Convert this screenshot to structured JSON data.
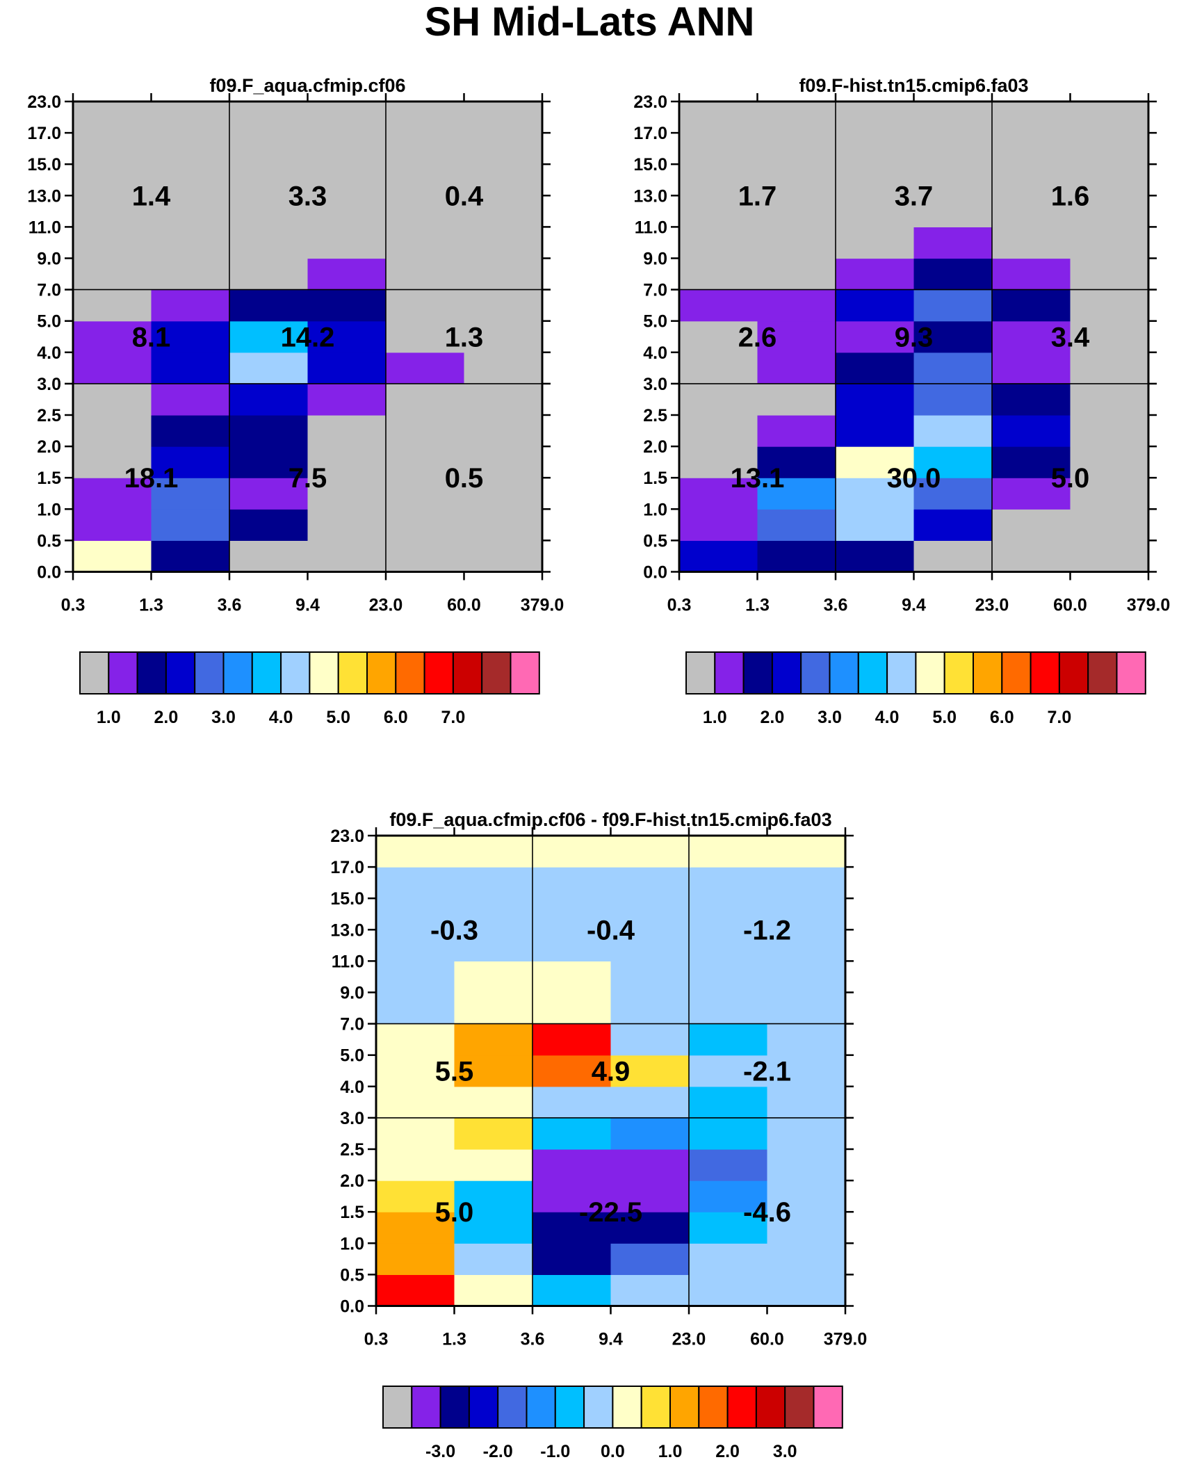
{
  "title": "SH Mid-Lats ANN",
  "palettes": {
    "abs": [
      "#c0c0c0",
      "#8522e8",
      "#00008c",
      "#0000cd",
      "#4169e1",
      "#1e90ff",
      "#00bfff",
      "#a0d0ff",
      "#ffffc8",
      "#ffe135",
      "#ffa500",
      "#ff6a00",
      "#ff0000",
      "#cc0000",
      "#a52a2a",
      "#ff69b4"
    ],
    "diff": [
      "#c0c0c0",
      "#8522e8",
      "#00008c",
      "#0000cd",
      "#4169e1",
      "#1e90ff",
      "#00bfff",
      "#a0d0ff",
      "#ffffc8",
      "#ffe135",
      "#ffa500",
      "#ff6a00",
      "#ff0000",
      "#cc0000",
      "#a52a2a",
      "#ff69b4"
    ]
  },
  "chart_data": [
    {
      "type": "heatmap",
      "title": "f09.F_aqua.cfmip.cf06",
      "xlabel": "",
      "ylabel": "",
      "x_ticks": [
        "0.3",
        "1.3",
        "3.6",
        "9.4",
        "23.0",
        "60.0",
        "379.0"
      ],
      "y_ticks": [
        "0.0",
        "0.5",
        "1.0",
        "1.5",
        "2.0",
        "2.5",
        "3.0",
        "4.0",
        "5.0",
        "7.0",
        "9.0",
        "11.0",
        "13.0",
        "15.0",
        "17.0",
        "23.0"
      ],
      "cells_color_index_bottom_to_top": [
        [
          8,
          1,
          1,
          0,
          0,
          0,
          1,
          1,
          0,
          0,
          0,
          0,
          0,
          0,
          0
        ],
        [
          2,
          4,
          4,
          3,
          2,
          1,
          3,
          3,
          1,
          0,
          0,
          0,
          0,
          0,
          0
        ],
        [
          0,
          2,
          1,
          2,
          2,
          3,
          7,
          6,
          2,
          0,
          0,
          0,
          0,
          0,
          0
        ],
        [
          0,
          0,
          0,
          0,
          0,
          1,
          3,
          3,
          2,
          1,
          0,
          0,
          0,
          0,
          0
        ],
        [
          0,
          0,
          0,
          0,
          0,
          0,
          1,
          0,
          0,
          0,
          0,
          0,
          0,
          0,
          0
        ],
        [
          0,
          0,
          0,
          0,
          0,
          0,
          0,
          0,
          0,
          0,
          0,
          0,
          0,
          0,
          0
        ]
      ],
      "group_values": [
        {
          "label": "1.4"
        },
        {
          "label": "3.3"
        },
        {
          "label": "0.4"
        },
        {
          "label": "8.1"
        },
        {
          "label": "14.2"
        },
        {
          "label": "1.3"
        },
        {
          "label": "18.1"
        },
        {
          "label": "7.5"
        },
        {
          "label": "0.5"
        }
      ],
      "colorbar": {
        "palette": "abs",
        "labels": [
          "1.0",
          "2.0",
          "3.0",
          "4.0",
          "5.0",
          "6.0",
          "7.0"
        ],
        "label_boxes": [
          1,
          3,
          5,
          7,
          9,
          11,
          13
        ]
      }
    },
    {
      "type": "heatmap",
      "title": "f09.F-hist.tn15.cmip6.fa03",
      "xlabel": "",
      "ylabel": "",
      "x_ticks": [
        "0.3",
        "1.3",
        "3.6",
        "9.4",
        "23.0",
        "60.0",
        "379.0"
      ],
      "y_ticks": [
        "0.0",
        "0.5",
        "1.0",
        "1.5",
        "2.0",
        "2.5",
        "3.0",
        "4.0",
        "5.0",
        "7.0",
        "9.0",
        "11.0",
        "13.0",
        "15.0",
        "17.0",
        "23.0"
      ],
      "cells_color_index_bottom_to_top": [
        [
          3,
          1,
          1,
          0,
          0,
          0,
          0,
          0,
          1,
          0,
          0,
          0,
          0,
          0,
          0
        ],
        [
          2,
          4,
          5,
          2,
          1,
          0,
          1,
          1,
          1,
          0,
          0,
          0,
          0,
          0,
          0
        ],
        [
          2,
          7,
          7,
          8,
          3,
          3,
          2,
          1,
          3,
          1,
          0,
          0,
          0,
          0,
          0
        ],
        [
          0,
          3,
          4,
          6,
          7,
          4,
          4,
          2,
          4,
          2,
          1,
          0,
          0,
          0,
          0
        ],
        [
          0,
          0,
          1,
          2,
          3,
          2,
          1,
          1,
          2,
          1,
          0,
          0,
          0,
          0,
          0
        ],
        [
          0,
          0,
          0,
          0,
          0,
          0,
          0,
          0,
          0,
          0,
          0,
          0,
          0,
          0,
          0
        ]
      ],
      "group_values": [
        {
          "label": "1.7"
        },
        {
          "label": "3.7"
        },
        {
          "label": "1.6"
        },
        {
          "label": "2.6"
        },
        {
          "label": "9.3"
        },
        {
          "label": "3.4"
        },
        {
          "label": "13.1"
        },
        {
          "label": "30.0"
        },
        {
          "label": "5.0"
        }
      ],
      "colorbar": {
        "palette": "abs",
        "labels": [
          "1.0",
          "2.0",
          "3.0",
          "4.0",
          "5.0",
          "6.0",
          "7.0"
        ],
        "label_boxes": [
          1,
          3,
          5,
          7,
          9,
          11,
          13
        ]
      }
    },
    {
      "type": "heatmap",
      "title": "f09.F_aqua.cfmip.cf06 - f09.F-hist.tn15.cmip6.fa03",
      "xlabel": "",
      "ylabel": "",
      "x_ticks": [
        "0.3",
        "1.3",
        "3.6",
        "9.4",
        "23.0",
        "60.0",
        "379.0"
      ],
      "y_ticks": [
        "0.0",
        "0.5",
        "1.0",
        "1.5",
        "2.0",
        "2.5",
        "3.0",
        "4.0",
        "5.0",
        "7.0",
        "9.0",
        "11.0",
        "13.0",
        "15.0",
        "17.0",
        "23.0"
      ],
      "cells_color_index_bottom_to_top": [
        [
          12,
          10,
          10,
          9,
          8,
          8,
          8,
          8,
          8,
          7,
          7,
          7,
          7,
          7,
          8
        ],
        [
          8,
          7,
          6,
          6,
          8,
          9,
          8,
          10,
          10,
          8,
          8,
          7,
          7,
          7,
          8
        ],
        [
          6,
          2,
          2,
          1,
          1,
          6,
          7,
          11,
          12,
          8,
          8,
          7,
          7,
          7,
          8
        ],
        [
          7,
          4,
          2,
          1,
          1,
          5,
          7,
          9,
          7,
          7,
          7,
          7,
          7,
          7,
          8
        ],
        [
          7,
          7,
          6,
          5,
          4,
          6,
          6,
          7,
          6,
          7,
          7,
          7,
          7,
          7,
          8
        ],
        [
          7,
          7,
          7,
          7,
          7,
          7,
          7,
          7,
          7,
          7,
          7,
          7,
          7,
          7,
          8
        ]
      ],
      "group_values": [
        {
          "label": "-0.3"
        },
        {
          "label": "-0.4"
        },
        {
          "label": "-1.2"
        },
        {
          "label": "5.5"
        },
        {
          "label": "4.9"
        },
        {
          "label": "-2.1"
        },
        {
          "label": "5.0"
        },
        {
          "label": "-22.5"
        },
        {
          "label": "-4.6"
        }
      ],
      "colorbar": {
        "palette": "diff",
        "labels": [
          "-3.0",
          "-2.0",
          "-1.0",
          "0.0",
          "1.0",
          "2.0",
          "3.0"
        ],
        "label_boxes": [
          2,
          4,
          6,
          8,
          10,
          12,
          14
        ]
      }
    }
  ]
}
